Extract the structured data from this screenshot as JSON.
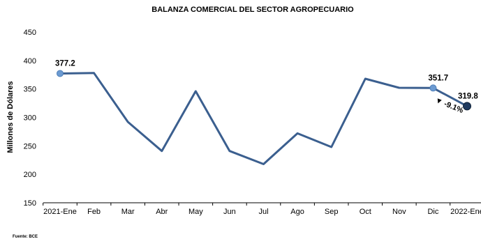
{
  "chart_data": {
    "type": "line",
    "title": "BALANZA COMERCIAL DEL SECTOR AGROPECUARIO",
    "ylabel": "Millones de Dólares",
    "xlabel": "",
    "categories": [
      "2021-Ene",
      "Feb",
      "Mar",
      "Abr",
      "May",
      "Jun",
      "Jul",
      "Ago",
      "Sep",
      "Oct",
      "Nov",
      "Dic",
      "2022-Ene"
    ],
    "series": [
      {
        "values": [
          377.2,
          378,
          292,
          241,
          346,
          241,
          218,
          272,
          248,
          368,
          352,
          351.7,
          319.8
        ]
      }
    ],
    "ylim": [
      150,
      450
    ],
    "yticks": [
      150,
      200,
      250,
      300,
      350,
      400,
      450
    ],
    "grid": false,
    "data_labels": [
      {
        "index": 0,
        "text": "377.2"
      },
      {
        "index": 11,
        "text": "351.7"
      },
      {
        "index": 12,
        "text": "319.8"
      }
    ],
    "annotation": {
      "text": "-9.1%",
      "arrow": "▼"
    },
    "source": "Fuente: BCE",
    "colors": {
      "line": "#3b5f8f",
      "marker": "#6c9bd2",
      "end_marker": "#1f3a5f"
    }
  }
}
